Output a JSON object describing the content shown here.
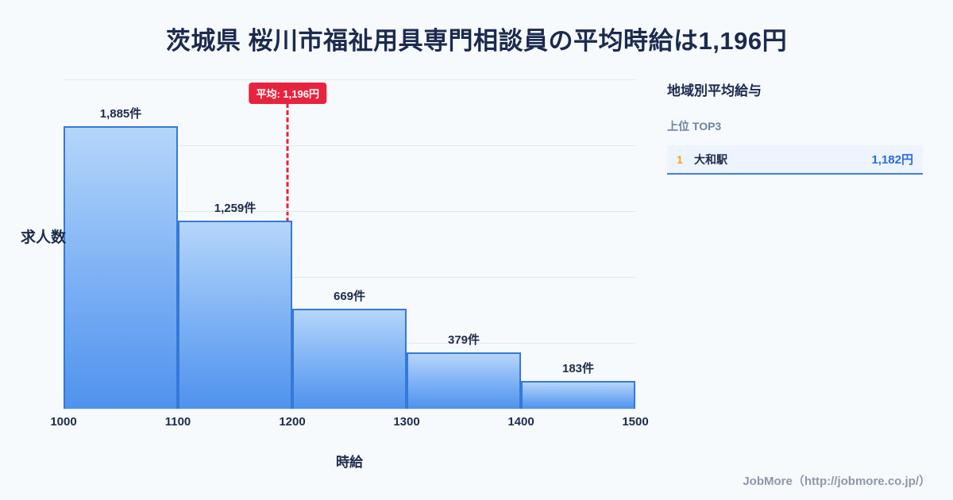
{
  "page": {
    "title": "茨城県 桜川市福祉用具専門相談員の平均時給は1,196円",
    "footer": "JobMore（http://jobmore.co.jp/）"
  },
  "chart_data": {
    "type": "bar",
    "title": "茨城県 桜川市福祉用具専門相談員の平均時給は1,196円",
    "xlabel": "時給",
    "ylabel": "求人数",
    "bins": [
      1000,
      1100,
      1200,
      1300,
      1400,
      1500
    ],
    "x_ticks": [
      "1000",
      "1100",
      "1200",
      "1300",
      "1400",
      "1500"
    ],
    "values": [
      1885,
      1259,
      669,
      379,
      183
    ],
    "bar_labels": [
      "1,885件",
      "1,259件",
      "669件",
      "379件",
      "183件"
    ],
    "xlim": [
      1000,
      1500
    ],
    "ylim": [
      0,
      2200
    ],
    "grid": true,
    "average": {
      "value": 1196,
      "label": "平均: 1,196円"
    },
    "colors": {
      "bar_top": "#b5d6fa",
      "bar_bottom": "#4f92ee",
      "bar_border": "#3579d8",
      "avg_line": "#e8233d",
      "title_text": "#1b2a4e"
    }
  },
  "sidebar": {
    "heading": "地域別平均給与",
    "subheading": "上位 TOP3",
    "items": [
      {
        "rank": "1",
        "name": "大和駅",
        "value": "1,182円"
      }
    ]
  }
}
